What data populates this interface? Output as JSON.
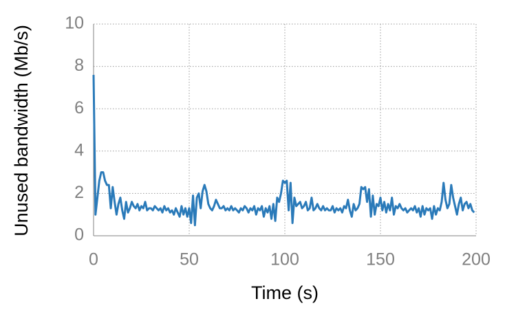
{
  "chart_data": {
    "type": "line",
    "x_label": "Time (s)",
    "y_label": "Unused bandwidth (Mb/s)",
    "color": "#2a7ab9",
    "grid": true,
    "xlim": [
      0,
      200
    ],
    "xticks": [
      0,
      50,
      100,
      150,
      200
    ],
    "ylim": [
      0,
      10
    ],
    "yticks": [
      0,
      2,
      4,
      6,
      8,
      10
    ],
    "x": [
      0,
      1,
      2,
      3,
      4,
      5,
      6,
      7,
      8,
      9,
      10,
      11,
      12,
      13,
      14,
      15,
      16,
      17,
      18,
      19,
      20,
      21,
      22,
      23,
      24,
      25,
      26,
      27,
      28,
      29,
      30,
      31,
      32,
      33,
      34,
      35,
      36,
      37,
      38,
      39,
      40,
      41,
      42,
      43,
      44,
      45,
      46,
      47,
      48,
      49,
      50,
      51,
      52,
      53,
      54,
      55,
      56,
      57,
      58,
      59,
      60,
      61,
      62,
      63,
      64,
      65,
      66,
      67,
      68,
      69,
      70,
      71,
      72,
      73,
      74,
      75,
      76,
      77,
      78,
      79,
      80,
      81,
      82,
      83,
      84,
      85,
      86,
      87,
      88,
      89,
      90,
      91,
      92,
      93,
      94,
      95,
      96,
      97,
      98,
      99,
      100,
      101,
      102,
      103,
      104,
      105,
      106,
      107,
      108,
      109,
      110,
      111,
      112,
      113,
      114,
      115,
      116,
      117,
      118,
      119,
      120,
      121,
      122,
      123,
      124,
      125,
      126,
      127,
      128,
      129,
      130,
      131,
      132,
      133,
      134,
      135,
      136,
      137,
      138,
      139,
      140,
      141,
      142,
      143,
      144,
      145,
      146,
      147,
      148,
      149,
      150,
      151,
      152,
      153,
      154,
      155,
      156,
      157,
      158,
      159,
      160,
      161,
      162,
      163,
      164,
      165,
      166,
      167,
      168,
      169,
      170,
      171,
      172,
      173,
      174,
      175,
      176,
      177,
      178,
      179,
      180,
      181,
      182,
      183,
      184,
      185,
      186,
      187,
      188,
      189,
      190,
      191,
      192,
      193,
      194,
      195,
      196,
      197,
      198,
      199
    ],
    "values": [
      7.6,
      1.0,
      1.8,
      2.6,
      3.0,
      3.0,
      2.6,
      2.4,
      2.4,
      1.3,
      2.3,
      1.6,
      1.0,
      1.5,
      1.8,
      1.2,
      0.8,
      1.6,
      1.1,
      1.3,
      1.6,
      1.4,
      1.3,
      1.5,
      1.2,
      1.4,
      1.3,
      1.6,
      1.2,
      1.3,
      1.3,
      1.2,
      1.4,
      1.3,
      1.2,
      1.3,
      1.1,
      1.4,
      1.2,
      1.3,
      1.1,
      1.2,
      1.0,
      1.3,
      1.1,
      0.9,
      1.4,
      1.0,
      1.3,
      0.9,
      1.3,
      0.6,
      1.9,
      0.5,
      1.8,
      2.0,
      1.3,
      2.1,
      2.4,
      2.1,
      1.5,
      1.3,
      1.2,
      1.4,
      1.7,
      1.5,
      1.3,
      1.3,
      1.4,
      1.2,
      1.3,
      1.2,
      1.4,
      1.2,
      1.3,
      1.2,
      1.1,
      1.3,
      1.2,
      1.4,
      1.3,
      1.1,
      1.3,
      1.2,
      1.4,
      1.0,
      1.3,
      1.2,
      1.4,
      0.9,
      1.3,
      1.1,
      1.4,
      0.8,
      1.5,
      0.7,
      1.8,
      1.6,
      2.0,
      2.6,
      2.5,
      2.6,
      1.2,
      2.5,
      0.6,
      1.8,
      1.4,
      1.5,
      1.6,
      1.3,
      1.4,
      1.6,
      1.2,
      1.3,
      1.8,
      1.2,
      1.3,
      1.5,
      1.3,
      1.2,
      1.4,
      1.2,
      1.3,
      1.2,
      1.2,
      1.4,
      1.1,
      1.3,
      1.2,
      1.3,
      1.1,
      1.4,
      1.3,
      1.7,
      1.2,
      0.9,
      1.5,
      1.2,
      1.3,
      1.5,
      2.3,
      2.2,
      2.3,
      1.6,
      2.2,
      0.9,
      1.9,
      1.0,
      1.5,
      1.4,
      1.8,
      1.2,
      1.6,
      1.1,
      1.5,
      1.2,
      1.8,
      1.0,
      1.4,
      1.3,
      1.5,
      1.3,
      1.2,
      1.3,
      1.1,
      1.2,
      1.3,
      1.2,
      1.4,
      1.1,
      1.3,
      0.9,
      1.4,
      1.0,
      1.3,
      1.2,
      1.3,
      0.8,
      1.4,
      1.0,
      1.3,
      1.2,
      1.6,
      2.5,
      1.7,
      1.3,
      1.5,
      2.4,
      1.8,
      1.4,
      1.0,
      1.5,
      1.8,
      1.2,
      1.5,
      1.6,
      1.3,
      1.5,
      1.2,
      1.1
    ]
  }
}
